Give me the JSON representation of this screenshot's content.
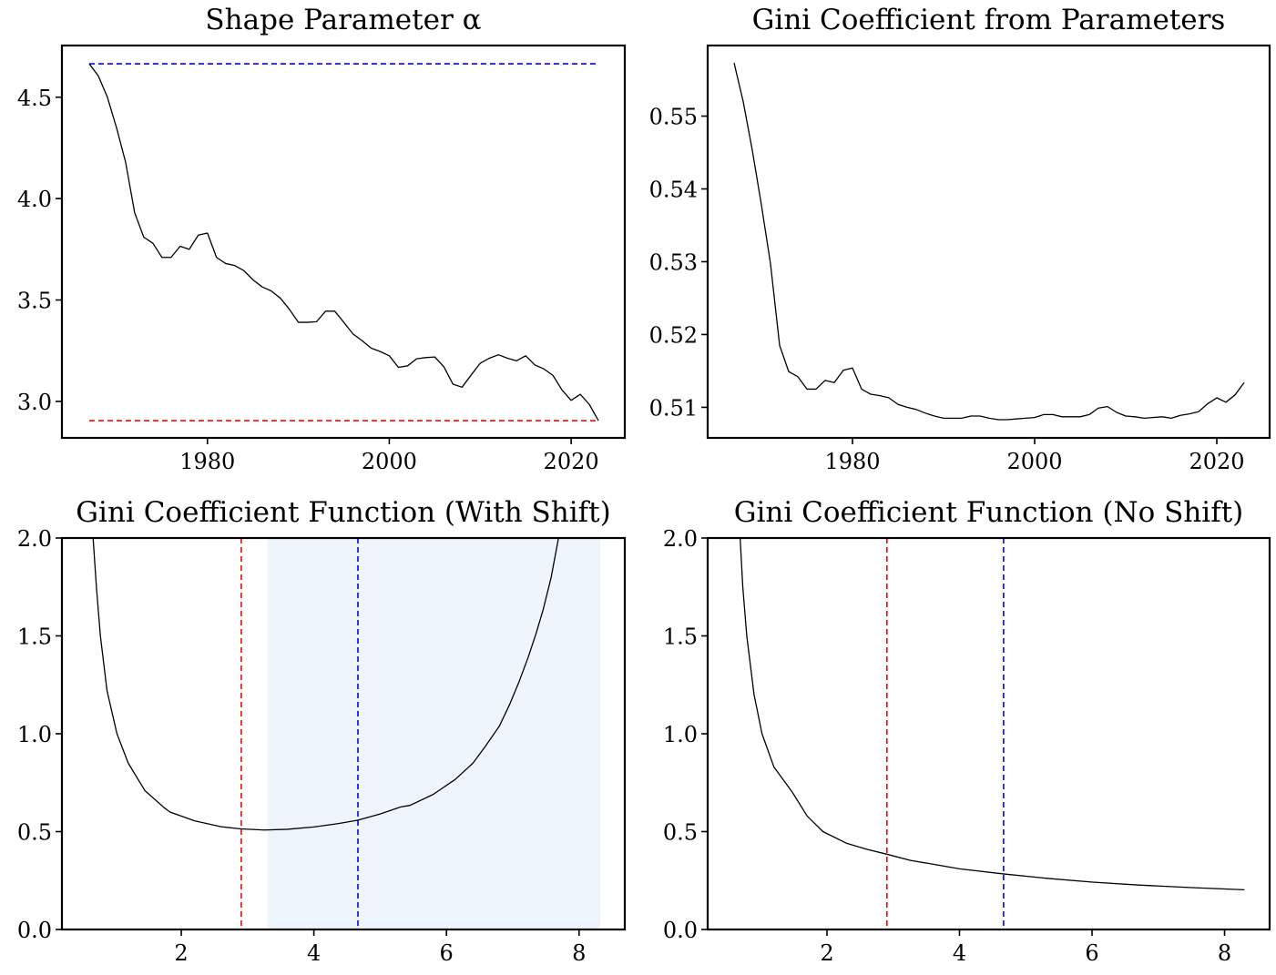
{
  "figure": {
    "layout": "2x2 grid"
  },
  "chart_data": [
    {
      "id": "alpha",
      "type": "line",
      "title": "Shape Parameter α",
      "xlabel": "",
      "ylabel": "",
      "xlim": [
        1964.0,
        2025.9
      ],
      "ylim": [
        2.82,
        4.755
      ],
      "xticks": [
        1980,
        2000,
        2020
      ],
      "xtick_labels": [
        "1980",
        "2000",
        "2020"
      ],
      "yticks": [
        3.0,
        3.5,
        4.0,
        4.5
      ],
      "ytick_labels": [
        "3.0",
        "3.5",
        "4.0",
        "4.5"
      ],
      "grid": false,
      "legend": null,
      "series": [
        {
          "name": "alpha",
          "color": "#000000",
          "style": "solid",
          "x": [
            1967,
            1968,
            1969,
            1970,
            1971,
            1972,
            1973,
            1974,
            1975,
            1976,
            1977,
            1978,
            1979,
            1980,
            1981,
            1982,
            1983,
            1984,
            1985,
            1986,
            1987,
            1988,
            1989,
            1990,
            1991,
            1992,
            1993,
            1994,
            1995,
            1996,
            1997,
            1998,
            1999,
            2000,
            2001,
            2002,
            2003,
            2004,
            2005,
            2006,
            2007,
            2008,
            2009,
            2010,
            2011,
            2012,
            2013,
            2014,
            2015,
            2016,
            2017,
            2018,
            2019,
            2020,
            2021,
            2022,
            2023
          ],
          "y": [
            4.665,
            4.605,
            4.5,
            4.35,
            4.18,
            3.93,
            3.81,
            3.78,
            3.71,
            3.71,
            3.765,
            3.75,
            3.82,
            3.83,
            3.71,
            3.68,
            3.67,
            3.645,
            3.6,
            3.565,
            3.545,
            3.51,
            3.455,
            3.39,
            3.39,
            3.393,
            3.445,
            3.445,
            3.39,
            3.333,
            3.3,
            3.263,
            3.246,
            3.225,
            3.168,
            3.175,
            3.21,
            3.216,
            3.219,
            3.171,
            3.085,
            3.07,
            3.13,
            3.188,
            3.213,
            3.23,
            3.213,
            3.2,
            3.225,
            3.18,
            3.16,
            3.128,
            3.056,
            3.005,
            3.035,
            2.985,
            2.905
          ]
        }
      ],
      "hlines": [
        {
          "name": "alpha-max",
          "y": 4.665,
          "x_from": 1967,
          "x_to": 2023,
          "color": "#0000ff",
          "style": "dashed"
        },
        {
          "name": "alpha-min",
          "y": 2.905,
          "x_from": 1967,
          "x_to": 2023,
          "color": "#ff0000",
          "style": "dashed"
        }
      ]
    },
    {
      "id": "gini-params",
      "type": "line",
      "title": "Gini Coefficient from Parameters",
      "xlabel": "",
      "ylabel": "",
      "xlim": [
        1964.1,
        2025.8
      ],
      "ylim": [
        0.5058,
        0.5597
      ],
      "xticks": [
        1980,
        2000,
        2020
      ],
      "xtick_labels": [
        "1980",
        "2000",
        "2020"
      ],
      "yticks": [
        0.51,
        0.52,
        0.53,
        0.54,
        0.55
      ],
      "ytick_labels": [
        "0.51",
        "0.52",
        "0.53",
        "0.54",
        "0.55"
      ],
      "grid": false,
      "legend": null,
      "series": [
        {
          "name": "gini",
          "color": "#000000",
          "style": "solid",
          "x": [
            1967,
            1968,
            1969,
            1970,
            1971,
            1972,
            1973,
            1974,
            1975,
            1976,
            1977,
            1978,
            1979,
            1980,
            1981,
            1982,
            1983,
            1984,
            1985,
            1986,
            1987,
            1988,
            1989,
            1990,
            1991,
            1992,
            1993,
            1994,
            1995,
            1996,
            1997,
            1998,
            1999,
            2000,
            2001,
            2002,
            2003,
            2004,
            2005,
            2006,
            2007,
            2008,
            2009,
            2010,
            2011,
            2012,
            2013,
            2014,
            2015,
            2016,
            2017,
            2018,
            2019,
            2020,
            2021,
            2022,
            2023
          ],
          "y": [
            0.5573,
            0.552,
            0.5453,
            0.5378,
            0.5297,
            0.5185,
            0.5149,
            0.5142,
            0.5125,
            0.5125,
            0.5137,
            0.5134,
            0.5151,
            0.5154,
            0.5125,
            0.5118,
            0.5116,
            0.5113,
            0.5104,
            0.51,
            0.5097,
            0.5092,
            0.5088,
            0.5085,
            0.5085,
            0.5085,
            0.5088,
            0.5088,
            0.5085,
            0.5083,
            0.5083,
            0.5084,
            0.5085,
            0.5086,
            0.509,
            0.509,
            0.5087,
            0.5087,
            0.5087,
            0.509,
            0.5099,
            0.5101,
            0.5093,
            0.5088,
            0.5087,
            0.5085,
            0.5086,
            0.5087,
            0.5085,
            0.5089,
            0.5091,
            0.5094,
            0.5105,
            0.5113,
            0.5107,
            0.5117,
            0.5134
          ]
        }
      ],
      "hlines": []
    },
    {
      "id": "gini-shift",
      "type": "line",
      "title": "Gini Coefficient Function (With Shift)",
      "xlabel": "",
      "ylabel": "",
      "xlim": [
        0.2,
        8.69
      ],
      "ylim": [
        0.0,
        2.0
      ],
      "xticks": [
        2,
        4,
        6,
        8
      ],
      "xtick_labels": [
        "2",
        "4",
        "6",
        "8"
      ],
      "yticks": [
        0.0,
        0.5,
        1.0,
        1.5,
        2.0
      ],
      "ytick_labels": [
        "0.0",
        "0.5",
        "1.0",
        "1.5",
        "2.0"
      ],
      "grid": false,
      "legend": null,
      "series": [
        {
          "name": "gini-function-shift",
          "color": "#000000",
          "style": "solid",
          "x": [
            0.64,
            0.67,
            0.72,
            0.78,
            0.88,
            1.03,
            1.2,
            1.45,
            1.74,
            1.83,
            2.2,
            2.6,
            2.9,
            3.25,
            3.6,
            4.0,
            4.35,
            4.66,
            5.0,
            5.31,
            5.45,
            5.8,
            6.13,
            6.4,
            6.59,
            6.8,
            6.96,
            7.1,
            7.23,
            7.35,
            7.46,
            7.58,
            7.69,
            7.72
          ],
          "y": [
            2.6,
            2.0,
            1.75,
            1.5,
            1.22,
            1.0,
            0.85,
            0.71,
            0.623,
            0.6,
            0.555,
            0.525,
            0.514,
            0.508,
            0.512,
            0.524,
            0.54,
            0.558,
            0.59,
            0.626,
            0.634,
            0.69,
            0.766,
            0.85,
            0.937,
            1.04,
            1.155,
            1.27,
            1.388,
            1.51,
            1.636,
            1.8,
            2.0,
            2.06
          ]
        }
      ],
      "vlines": [
        {
          "name": "alpha-min",
          "x": 2.905,
          "color": "#ff0000",
          "style": "dashed"
        },
        {
          "name": "alpha-max",
          "x": 4.665,
          "color": "#0000ff",
          "style": "dashed"
        }
      ],
      "shaded_span": {
        "x_from": 3.3,
        "x_to": 8.32,
        "color": "#eef5fd"
      }
    },
    {
      "id": "gini-noshift",
      "type": "line",
      "title": "Gini Coefficient Function (No Shift)",
      "xlabel": "",
      "ylabel": "",
      "xlim": [
        0.2,
        8.68
      ],
      "ylim": [
        0.0,
        2.0
      ],
      "xticks": [
        2,
        4,
        6,
        8
      ],
      "xtick_labels": [
        "2",
        "4",
        "6",
        "8"
      ],
      "yticks": [
        0.0,
        0.5,
        1.0,
        1.5,
        2.0
      ],
      "ytick_labels": [
        "0.0",
        "0.5",
        "1.0",
        "1.5",
        "2.0"
      ],
      "grid": false,
      "legend": null,
      "series": [
        {
          "name": "gini-function-noshift",
          "color": "#000000",
          "style": "solid",
          "x": [
            0.66,
            0.69,
            0.73,
            0.79,
            0.9,
            1.02,
            1.2,
            1.48,
            1.7,
            1.94,
            2.3,
            2.6,
            2.91,
            3.26,
            3.54,
            4.0,
            4.66,
            5.3,
            6.01,
            6.7,
            7.5,
            8.3
          ],
          "y": [
            2.3,
            2.0,
            1.75,
            1.5,
            1.2,
            1.0,
            0.83,
            0.7,
            0.58,
            0.5,
            0.44,
            0.41,
            0.384,
            0.353,
            0.337,
            0.31,
            0.284,
            0.262,
            0.242,
            0.227,
            0.214,
            0.203
          ]
        }
      ],
      "vlines": [
        {
          "name": "alpha-min",
          "x": 2.905,
          "color": "#ff0000",
          "style": "dashed"
        },
        {
          "name": "alpha-max",
          "x": 4.665,
          "color": "#0000ff",
          "style": "dashed"
        }
      ]
    }
  ]
}
